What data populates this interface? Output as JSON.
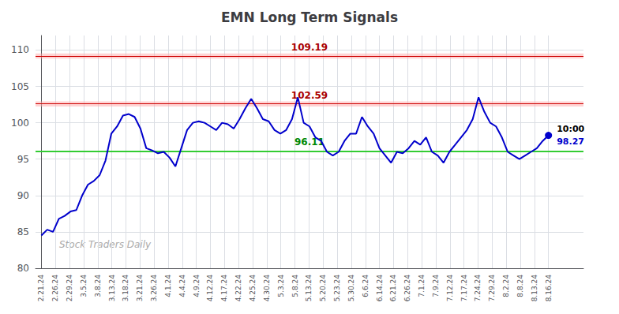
{
  "chart_data": {
    "type": "line",
    "title": "EMN Long Term Signals",
    "x": [
      0,
      1,
      2,
      3,
      4,
      5,
      6,
      7,
      8,
      9,
      10,
      11,
      12,
      13,
      14,
      15,
      16,
      17,
      18,
      19,
      20,
      21,
      22,
      23,
      24,
      25,
      26,
      27,
      28,
      29,
      30,
      31,
      32,
      33,
      34,
      35,
      36,
      37,
      38,
      39,
      40,
      41,
      42,
      43,
      44,
      45,
      46,
      47,
      48,
      49,
      50,
      51,
      52,
      53,
      54,
      55,
      56,
      57,
      58,
      59,
      60,
      61,
      62,
      63,
      64,
      65,
      66,
      67,
      68,
      69,
      70,
      71,
      72,
      73,
      74,
      75,
      76,
      77,
      78,
      79,
      80,
      81,
      82,
      83,
      84,
      85,
      86,
      87
    ],
    "values": [
      84.5,
      85.3,
      85.0,
      86.8,
      87.2,
      87.8,
      88.0,
      90.0,
      91.5,
      92.0,
      92.8,
      94.8,
      98.5,
      99.5,
      101.0,
      101.2,
      100.8,
      99.2,
      96.5,
      96.2,
      95.8,
      96.0,
      95.2,
      94.0,
      96.5,
      99.0,
      100.0,
      100.2,
      100.0,
      99.5,
      99.0,
      100.0,
      99.8,
      99.2,
      100.5,
      102.0,
      103.3,
      102.0,
      100.5,
      100.2,
      99.0,
      98.5,
      99.0,
      100.5,
      103.5,
      100.0,
      99.5,
      98.0,
      97.5,
      96.0,
      95.5,
      96.0,
      97.5,
      98.5,
      98.5,
      100.8,
      99.5,
      98.5,
      96.5,
      95.5,
      94.5,
      96.0,
      95.8,
      96.5,
      97.5,
      97.0,
      98.0,
      96.0,
      95.5,
      94.5,
      96.0,
      97.0,
      98.0,
      99.0,
      100.5,
      103.5,
      101.5,
      100.0,
      99.5,
      98.0,
      96.0,
      95.5,
      95.0,
      95.5,
      96.0,
      96.5,
      97.5,
      98.27
    ],
    "color": "#0000cc",
    "xlim": [
      -1,
      93
    ],
    "xticks": [
      {
        "value": 0,
        "label": "2.21.24"
      },
      {
        "value": 2.4167,
        "label": "2.26.24"
      },
      {
        "value": 4.8333,
        "label": "2.29.24"
      },
      {
        "value": 7.25,
        "label": "3.5.24"
      },
      {
        "value": 9.6667,
        "label": "3.8.24"
      },
      {
        "value": 12.0833,
        "label": "3.13.24"
      },
      {
        "value": 14.5,
        "label": "3.18.24"
      },
      {
        "value": 16.9167,
        "label": "3.21.24"
      },
      {
        "value": 19.3333,
        "label": "3.26.24"
      },
      {
        "value": 21.75,
        "label": "4.1.24"
      },
      {
        "value": 24.1667,
        "label": "4.4.24"
      },
      {
        "value": 26.5833,
        "label": "4.9.24"
      },
      {
        "value": 29,
        "label": "4.12.24"
      },
      {
        "value": 31.4167,
        "label": "4.17.24"
      },
      {
        "value": 33.8333,
        "label": "4.22.24"
      },
      {
        "value": 36.25,
        "label": "4.25.24"
      },
      {
        "value": 38.6667,
        "label": "4.30.24"
      },
      {
        "value": 41.0833,
        "label": "5.3.24"
      },
      {
        "value": 43.5,
        "label": "5.8.24"
      },
      {
        "value": 45.9167,
        "label": "5.13.24"
      },
      {
        "value": 48.3333,
        "label": "5.20.24"
      },
      {
        "value": 50.75,
        "label": "5.23.24"
      },
      {
        "value": 53.1667,
        "label": "5.30.24"
      },
      {
        "value": 55.5833,
        "label": "6.6.24"
      },
      {
        "value": 58,
        "label": "6.14.24"
      },
      {
        "value": 60.4167,
        "label": "6.21.24"
      },
      {
        "value": 62.8333,
        "label": "6.26.24"
      },
      {
        "value": 65.25,
        "label": "7.1.24"
      },
      {
        "value": 67.6667,
        "label": "7.9.24"
      },
      {
        "value": 70.0833,
        "label": "7.12.24"
      },
      {
        "value": 72.5,
        "label": "7.17.24"
      },
      {
        "value": 74.9167,
        "label": "7.24.24"
      },
      {
        "value": 77.3333,
        "label": "7.29.24"
      },
      {
        "value": 79.75,
        "label": "8.2.24"
      },
      {
        "value": 82.1667,
        "label": "8.8.24"
      },
      {
        "value": 84.5833,
        "label": "8.13.24"
      },
      {
        "value": 87,
        "label": "8.16.24"
      }
    ],
    "ylim": [
      80,
      112
    ],
    "yticks": [
      80,
      85,
      90,
      95,
      100,
      105,
      110
    ],
    "grid": true,
    "band_half_width": 0.35,
    "levels": [
      {
        "value": 109.19,
        "label": "109.19",
        "color": "#cc0000",
        "text_color": "#aa0000",
        "band_color": "#ffaaaa"
      },
      {
        "value": 102.59,
        "label": "102.59",
        "color": "#cc0000",
        "text_color": "#aa0000",
        "band_color": "#ffaaaa"
      },
      {
        "value": 96.11,
        "label": "96.11",
        "color": "#33cc33",
        "text_color": "#008800"
      }
    ],
    "end_labels": [
      {
        "text": "10:00",
        "color": "#000000"
      },
      {
        "text": "98.27",
        "color": "#0000cc"
      }
    ],
    "watermark": "Stock Traders Daily"
  }
}
